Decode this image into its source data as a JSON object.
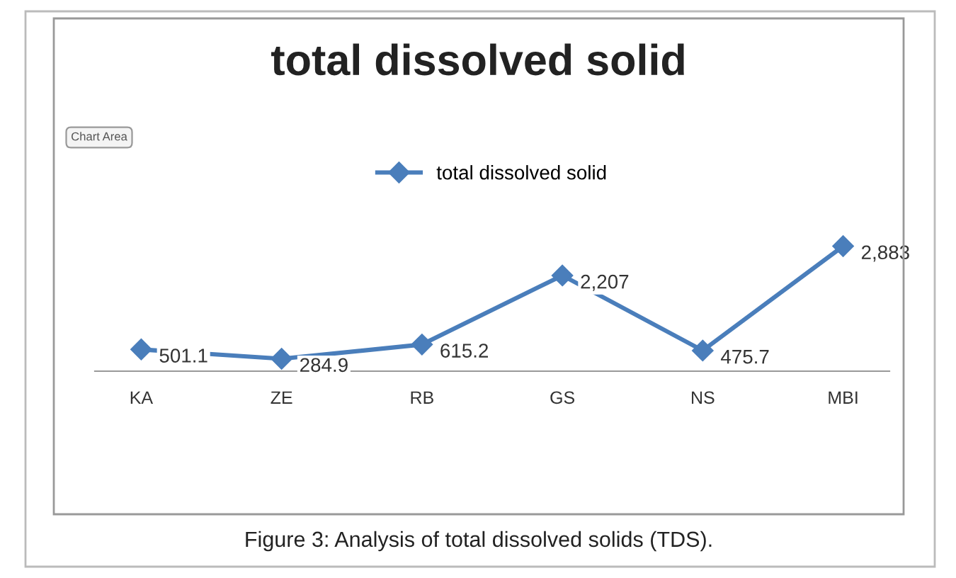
{
  "chart_data": {
    "type": "line",
    "title": "total dissolved solid",
    "categories": [
      "KA",
      "ZE",
      "RB",
      "GS",
      "NS",
      "MBI"
    ],
    "series": [
      {
        "name": "total dissolved solid",
        "color": "#4a7ebb",
        "values": [
          501.1,
          284.9,
          615.2,
          2207,
          475.7,
          2883
        ],
        "value_labels": [
          "501.1",
          "284.9",
          "615.2",
          "2,207",
          "475.7",
          "2,883"
        ]
      }
    ],
    "marker": "diamond",
    "legend": "top",
    "grid": false,
    "annotations": [
      "Chart Area",
      "Figure 3: Analysis of total dissolved solids (TDS)."
    ]
  }
}
